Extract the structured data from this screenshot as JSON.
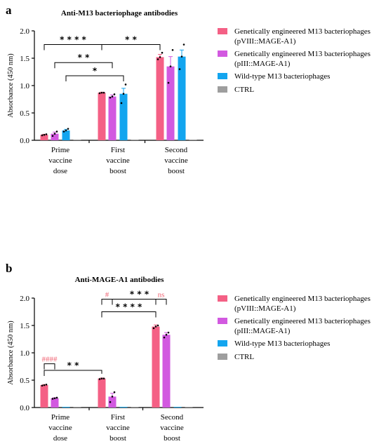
{
  "colors": {
    "pVIII": "#f46085",
    "pIII": "#d259e0",
    "wildtype": "#13a5ef",
    "ctrl": "#9e9e9e",
    "annotation_red": "#f06272",
    "axis": "#000000"
  },
  "legend": [
    {
      "key": "pVIII",
      "line1": "Genetically engineered M13 bacteriophages",
      "line2": "(pVIII::MAGE-A1)"
    },
    {
      "key": "pIII",
      "line1": "Genetically engineered M13 bacteriophages",
      "line2": "(pIII::MAGE-A1)"
    },
    {
      "key": "wildtype",
      "line1": "Wild-type M13 bacteriophages",
      "line2": ""
    },
    {
      "key": "ctrl",
      "line1": "CTRL",
      "line2": ""
    }
  ],
  "chart_data": [
    {
      "panel": "a",
      "type": "bar",
      "title": "Anti-M13 bacteriophage antibodies",
      "ylabel": "Absorbance (450 nm)",
      "ylim": [
        0,
        2.0
      ],
      "yticks": [
        "0.0",
        "0.5",
        "1.0",
        "1.5",
        "2.0"
      ],
      "categories": [
        [
          "Prime",
          "vaccine",
          "dose"
        ],
        [
          "First",
          "vaccine",
          "boost"
        ],
        [
          "Second",
          "vaccine",
          "boost"
        ]
      ],
      "series": [
        {
          "key": "pVIII",
          "values": [
            0.1,
            0.87,
            1.52
          ],
          "err": [
            0.01,
            0.01,
            0.05
          ],
          "points": [
            [
              0.09,
              0.1,
              0.11
            ],
            [
              0.86,
              0.87,
              0.87
            ],
            [
              1.48,
              1.52,
              1.6
            ]
          ]
        },
        {
          "key": "pIII",
          "values": [
            0.12,
            0.8,
            1.35
          ],
          "err": [
            0.03,
            0.03,
            0.18
          ],
          "points": [
            [
              0.08,
              0.12,
              0.16
            ],
            [
              0.78,
              0.8,
              0.84
            ],
            [
              1.05,
              1.35,
              1.65
            ]
          ]
        },
        {
          "key": "wildtype",
          "values": [
            0.18,
            0.85,
            1.53
          ],
          "err": [
            0.02,
            0.1,
            0.12
          ],
          "points": [
            [
              0.16,
              0.18,
              0.21
            ],
            [
              0.68,
              0.85,
              1.02
            ],
            [
              1.3,
              1.53,
              1.75
            ]
          ]
        },
        {
          "key": "ctrl",
          "values": [
            0.01,
            0.01,
            0.01
          ],
          "err": [
            0,
            0,
            0
          ],
          "points": [
            [],
            [],
            []
          ]
        }
      ],
      "significance": [
        {
          "label": "* * * *",
          "from": [
            0,
            "pVIII"
          ],
          "to": [
            1,
            "pVIII"
          ],
          "y": 1.75
        },
        {
          "label": "* *",
          "from": [
            1,
            "pVIII"
          ],
          "to": [
            2,
            "pVIII"
          ],
          "y": 1.75
        },
        {
          "label": "* *",
          "from": [
            0,
            "pIII"
          ],
          "to": [
            1,
            "pIII"
          ],
          "y": 1.42
        },
        {
          "label": "*",
          "from": [
            0,
            "wildtype"
          ],
          "to": [
            1,
            "wildtype"
          ],
          "y": 1.18
        }
      ]
    },
    {
      "panel": "b",
      "type": "bar",
      "title": "Anti-MAGE-A1 antibodies",
      "ylabel": "Absorbance (450 nm)",
      "ylim": [
        0,
        2.0
      ],
      "yticks": [
        "0.0",
        "0.5",
        "1.0",
        "1.5",
        "2.0"
      ],
      "categories": [
        [
          "Prime",
          "vaccine",
          "dose"
        ],
        [
          "First",
          "vaccine",
          "boost"
        ],
        [
          "Second",
          "vaccine",
          "boost"
        ]
      ],
      "series": [
        {
          "key": "pVIII",
          "values": [
            0.41,
            0.53,
            1.48
          ],
          "err": [
            0.01,
            0.01,
            0.03
          ],
          "points": [
            [
              0.4,
              0.41,
              0.42
            ],
            [
              0.52,
              0.53,
              0.53
            ],
            [
              1.45,
              1.48,
              1.5
            ]
          ]
        },
        {
          "key": "pIII",
          "values": [
            0.17,
            0.2,
            1.33
          ],
          "err": [
            0.01,
            0.06,
            0.04
          ],
          "points": [
            [
              0.16,
              0.17,
              0.18
            ],
            [
              0.1,
              0.2,
              0.28
            ],
            [
              1.28,
              1.33,
              1.37
            ]
          ]
        },
        {
          "key": "wildtype",
          "values": [
            0.01,
            0.01,
            0.01
          ],
          "err": [
            0,
            0,
            0
          ],
          "points": [
            [],
            [],
            []
          ]
        },
        {
          "key": "ctrl",
          "values": [
            0.01,
            0.01,
            0.01
          ],
          "err": [
            0,
            0,
            0
          ],
          "points": [
            [],
            [],
            []
          ]
        }
      ],
      "significance": [
        {
          "label": "####",
          "from": [
            0,
            "pVIII"
          ],
          "to": [
            0,
            "pIII"
          ],
          "y": 0.8,
          "color": "red"
        },
        {
          "label": "* *",
          "from": [
            0,
            "pVIII"
          ],
          "to": [
            1,
            "pVIII"
          ],
          "y": 0.68
        },
        {
          "label": "#",
          "from": [
            1,
            "pVIII"
          ],
          "to": [
            1,
            "pIII"
          ],
          "y": 1.98,
          "color": "red"
        },
        {
          "label": "* * *",
          "from": [
            1,
            "pIII"
          ],
          "to": [
            2,
            "pIII"
          ],
          "y": 1.98
        },
        {
          "label": "* * * *",
          "from": [
            1,
            "pVIII"
          ],
          "to": [
            2,
            "pVIII"
          ],
          "y": 1.75
        },
        {
          "label": "ns",
          "from": [
            2,
            "pVIII"
          ],
          "to": [
            2,
            "pIII"
          ],
          "y": 1.98,
          "color": "red"
        }
      ]
    }
  ]
}
